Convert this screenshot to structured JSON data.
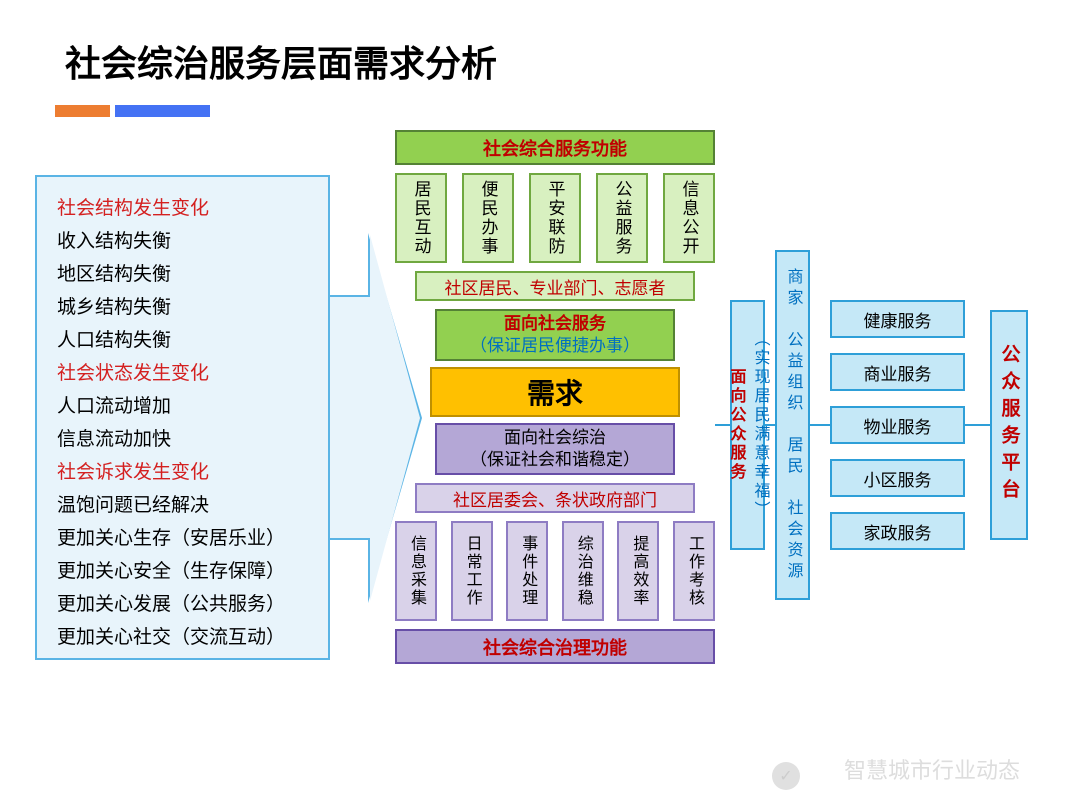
{
  "title": "社会综治服务层面需求分析",
  "leftPanel": {
    "items": [
      {
        "t": "社会结构发生变化",
        "red": true
      },
      {
        "t": "收入结构失衡",
        "red": false
      },
      {
        "t": "地区结构失衡",
        "red": false
      },
      {
        "t": "城乡结构失衡",
        "red": false
      },
      {
        "t": "人口结构失衡",
        "red": false
      },
      {
        "t": "社会状态发生变化",
        "red": true
      },
      {
        "t": "人口流动增加",
        "red": false
      },
      {
        "t": "信息流动加快",
        "red": false
      },
      {
        "t": "社会诉求发生变化",
        "red": true
      },
      {
        "t": "温饱问题已经解决",
        "red": false
      },
      {
        "t": "更加关心生存（安居乐业）",
        "red": false
      },
      {
        "t": "更加关心安全（生存保障）",
        "red": false
      },
      {
        "t": "更加关心发展（公共服务）",
        "red": false
      },
      {
        "t": "更加关心社交（交流互动）",
        "red": false
      }
    ]
  },
  "center": {
    "topFunc": "社会综合服务功能",
    "five": [
      "居民互动",
      "便民办事",
      "平安联防",
      "公益服务",
      "信息公开"
    ],
    "peopleTop": "社区居民、专业部门、志愿者",
    "serviceTop": {
      "t1": "面向社会服务",
      "t2": "（保证居民便捷办事）"
    },
    "demand": "需求",
    "serviceBottom": {
      "t1": "面向社会综治",
      "t2": "（保证社会和谐稳定）"
    },
    "peopleBottom": "社区居委会、条状政府部门",
    "six": [
      "信息采集",
      "日常工作",
      "事件处理",
      "综治维稳",
      "提高效率",
      "工作考核"
    ],
    "bottomFunc": "社会综合治理功能"
  },
  "right": {
    "col1": {
      "a": "面向公众服务",
      "b": "（实现居民满意幸福）"
    },
    "col2": "商家　公益组织　居民　社会资源",
    "services": [
      "健康服务",
      "商业服务",
      "物业服务",
      "小区服务",
      "家政服务"
    ],
    "platform": "公众服务平台"
  },
  "watermark": "智慧城市行业动态",
  "colors": {
    "green": "#92d050",
    "lightgreen": "#d8f0c0",
    "orange": "#ffc000",
    "purple": "#b4a7d6",
    "lightpurple": "#d9d2e9",
    "lightblue": "#c5e8f7",
    "red_text": "#c00000",
    "blue_text": "#0070c0"
  }
}
